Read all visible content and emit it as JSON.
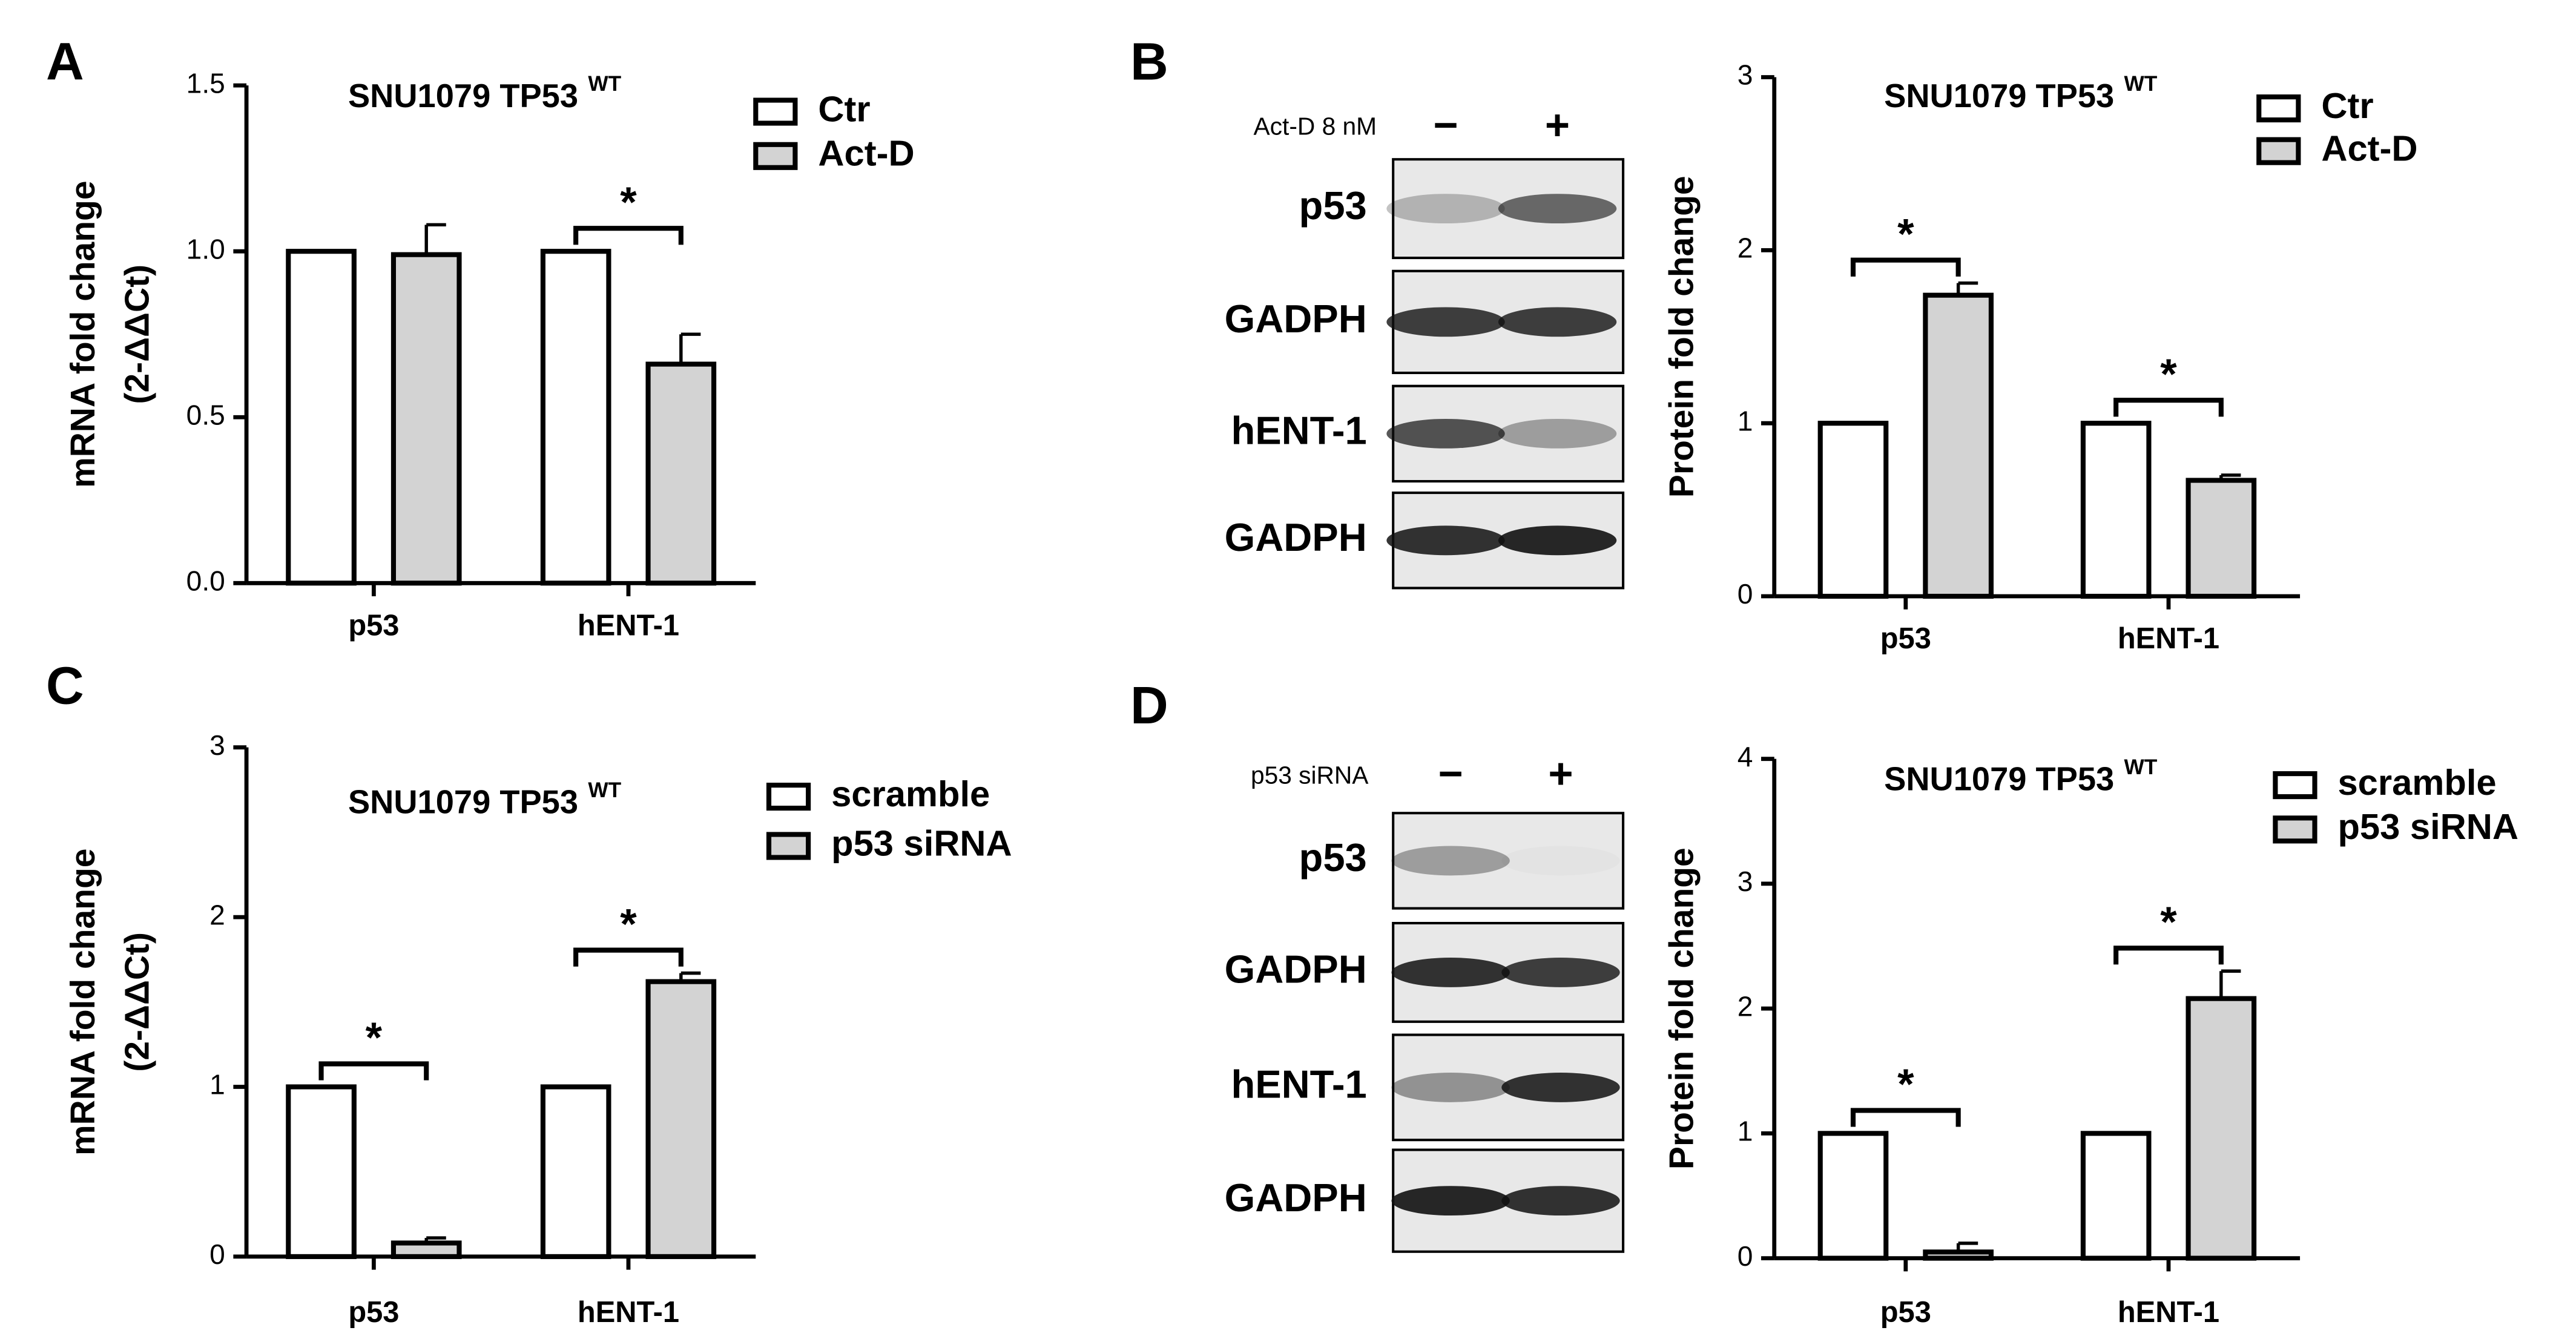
{
  "panels": [
    "A",
    "B",
    "C",
    "D"
  ],
  "blots": [
    {
      "treatment": "Act-D 8 nM",
      "lanes": [
        "−",
        "+"
      ],
      "rows": [
        "p53",
        "GADPH",
        "hENT-1",
        "GADPH"
      ]
    },
    {
      "treatment": "p53 siRNA",
      "lanes": [
        "−",
        "+"
      ],
      "rows": [
        "p53",
        "GADPH",
        "hENT-1",
        "GADPH"
      ]
    }
  ],
  "chart_data": [
    {
      "type": "bar",
      "title": "SNU1079 TP53",
      "title_superscript": "WT",
      "ylabel": [
        "mRNA fold change",
        "(2-ΔΔCt)"
      ],
      "categories": [
        "p53",
        "hENT-1"
      ],
      "series": [
        {
          "name": "Ctr",
          "color": "#ffffff",
          "values": [
            1,
            1
          ]
        },
        {
          "name": "Act-D",
          "color": "#d3d3d3",
          "values": [
            0.99,
            0.66
          ],
          "errors": [
            0.09,
            0.09
          ]
        }
      ],
      "significance": [
        null,
        "*"
      ],
      "ylim": [
        0,
        1.5
      ],
      "yticks": [
        {
          "value": 0,
          "label": "0.0"
        },
        {
          "value": 0.5,
          "label": "0.5"
        },
        {
          "value": 1,
          "label": "1.0"
        },
        {
          "value": 1.5,
          "label": "1.5"
        }
      ]
    },
    {
      "type": "bar",
      "title": "SNU1079 TP53",
      "title_superscript": "WT",
      "ylabel": [
        "Protein fold change"
      ],
      "categories": [
        "p53",
        "hENT-1"
      ],
      "series": [
        {
          "name": "Ctr",
          "color": "#ffffff",
          "values": [
            1,
            1
          ]
        },
        {
          "name": "Act-D",
          "color": "#d3d3d3",
          "values": [
            1.74,
            0.67
          ],
          "errors": [
            0.07,
            0.03
          ]
        }
      ],
      "significance": [
        "*",
        "*"
      ],
      "ylim": [
        0,
        3
      ],
      "yticks": [
        0,
        1,
        2,
        3
      ]
    },
    {
      "type": "bar",
      "title": "SNU1079 TP53",
      "title_superscript": "WT",
      "ylabel": [
        "mRNA fold change",
        "(2-ΔΔCt)"
      ],
      "categories": [
        "p53",
        "hENT-1"
      ],
      "series": [
        {
          "name": "scramble",
          "color": "#ffffff",
          "values": [
            1,
            1
          ]
        },
        {
          "name": "p53 siRNA",
          "color": "#d3d3d3",
          "values": [
            0.08,
            1.62
          ],
          "errors": [
            0.03,
            0.05
          ]
        }
      ],
      "significance": [
        "*",
        "*"
      ],
      "ylim": [
        0,
        3
      ],
      "yticks": [
        0,
        1,
        2,
        3
      ]
    },
    {
      "type": "bar",
      "title": "SNU1079 TP53",
      "title_superscript": "WT",
      "ylabel": [
        "Protein fold change"
      ],
      "categories": [
        "p53",
        "hENT-1"
      ],
      "series": [
        {
          "name": "scramble",
          "color": "#ffffff",
          "values": [
            1,
            1
          ]
        },
        {
          "name": "p53 siRNA",
          "color": "#d3d3d3",
          "values": [
            0.05,
            2.08
          ],
          "errors": [
            0.07,
            0.22
          ]
        }
      ],
      "significance": [
        "*",
        "*"
      ],
      "ylim": [
        0,
        4
      ],
      "yticks": [
        0,
        1,
        2,
        3,
        4
      ]
    }
  ]
}
